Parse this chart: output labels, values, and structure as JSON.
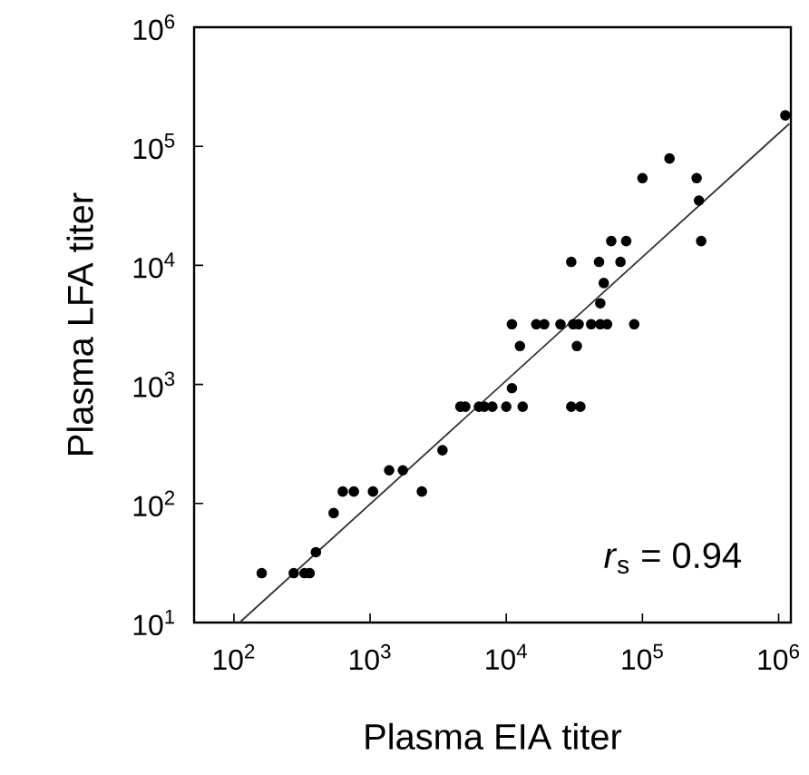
{
  "chart_data": {
    "type": "scatter",
    "xlabel": "Plasma EIA titer",
    "ylabel": "Plasma LFA titer",
    "log": "xy",
    "xlim": [
      51,
      1230000
    ],
    "ylim": [
      10,
      1000000
    ],
    "xticks": [
      {
        "value": 100,
        "label": "10$^{2}$"
      },
      {
        "value": 1000,
        "label": "10$^{3}$"
      },
      {
        "value": 10000,
        "label": "10$^{4}$"
      },
      {
        "value": 100000,
        "label": "10$^{5}$"
      },
      {
        "value": 1000000,
        "label": "10$^{6}$"
      }
    ],
    "yticks": [
      {
        "value": 10,
        "label": "10$^{1}$"
      },
      {
        "value": 100,
        "label": "10$^{2}$"
      },
      {
        "value": 1000,
        "label": "10$^{3}$"
      },
      {
        "value": 10000,
        "label": "10$^{4}$"
      },
      {
        "value": 100000,
        "label": "10$^{5}$"
      },
      {
        "value": 1000000,
        "label": "10$^{6}$"
      }
    ],
    "annotations": [
      "*r*$_{s}$ = 0.94"
    ],
    "series": [
      {
        "type": "scatter",
        "marker": "circle",
        "color": "#000000",
        "x": [
          160,
          275,
          330,
          360,
          400,
          540,
          630,
          760,
          1050,
          1380,
          1740,
          2400,
          3400,
          4600,
          5000,
          6300,
          6900,
          7900,
          10000,
          11000,
          13200,
          11000,
          12600,
          16600,
          19000,
          25000,
          30000,
          31000,
          33000,
          34000,
          30000,
          35000,
          42000,
          49000,
          48000,
          52000,
          49000,
          55000,
          59000,
          69000,
          76000,
          87000,
          100000,
          158000,
          250000,
          260000,
          270000,
          1120000
        ],
        "values": [
          26,
          26,
          26,
          26,
          39,
          83,
          126,
          126,
          126,
          190,
          190,
          126,
          280,
          650,
          650,
          650,
          650,
          650,
          650,
          930,
          650,
          3200,
          2100,
          3200,
          3200,
          3200,
          10700,
          3200,
          2100,
          3200,
          650,
          650,
          3200,
          4800,
          10700,
          7100,
          3200,
          3200,
          16000,
          10700,
          16000,
          3200,
          54000,
          79000,
          54000,
          35000,
          16000,
          182000
        ]
      },
      {
        "type": "line",
        "color": "#333333",
        "marker": "none",
        "line_style": "solid",
        "x": [
          110,
          1200000
        ],
        "values": [
          10,
          155000
        ]
      }
    ]
  }
}
